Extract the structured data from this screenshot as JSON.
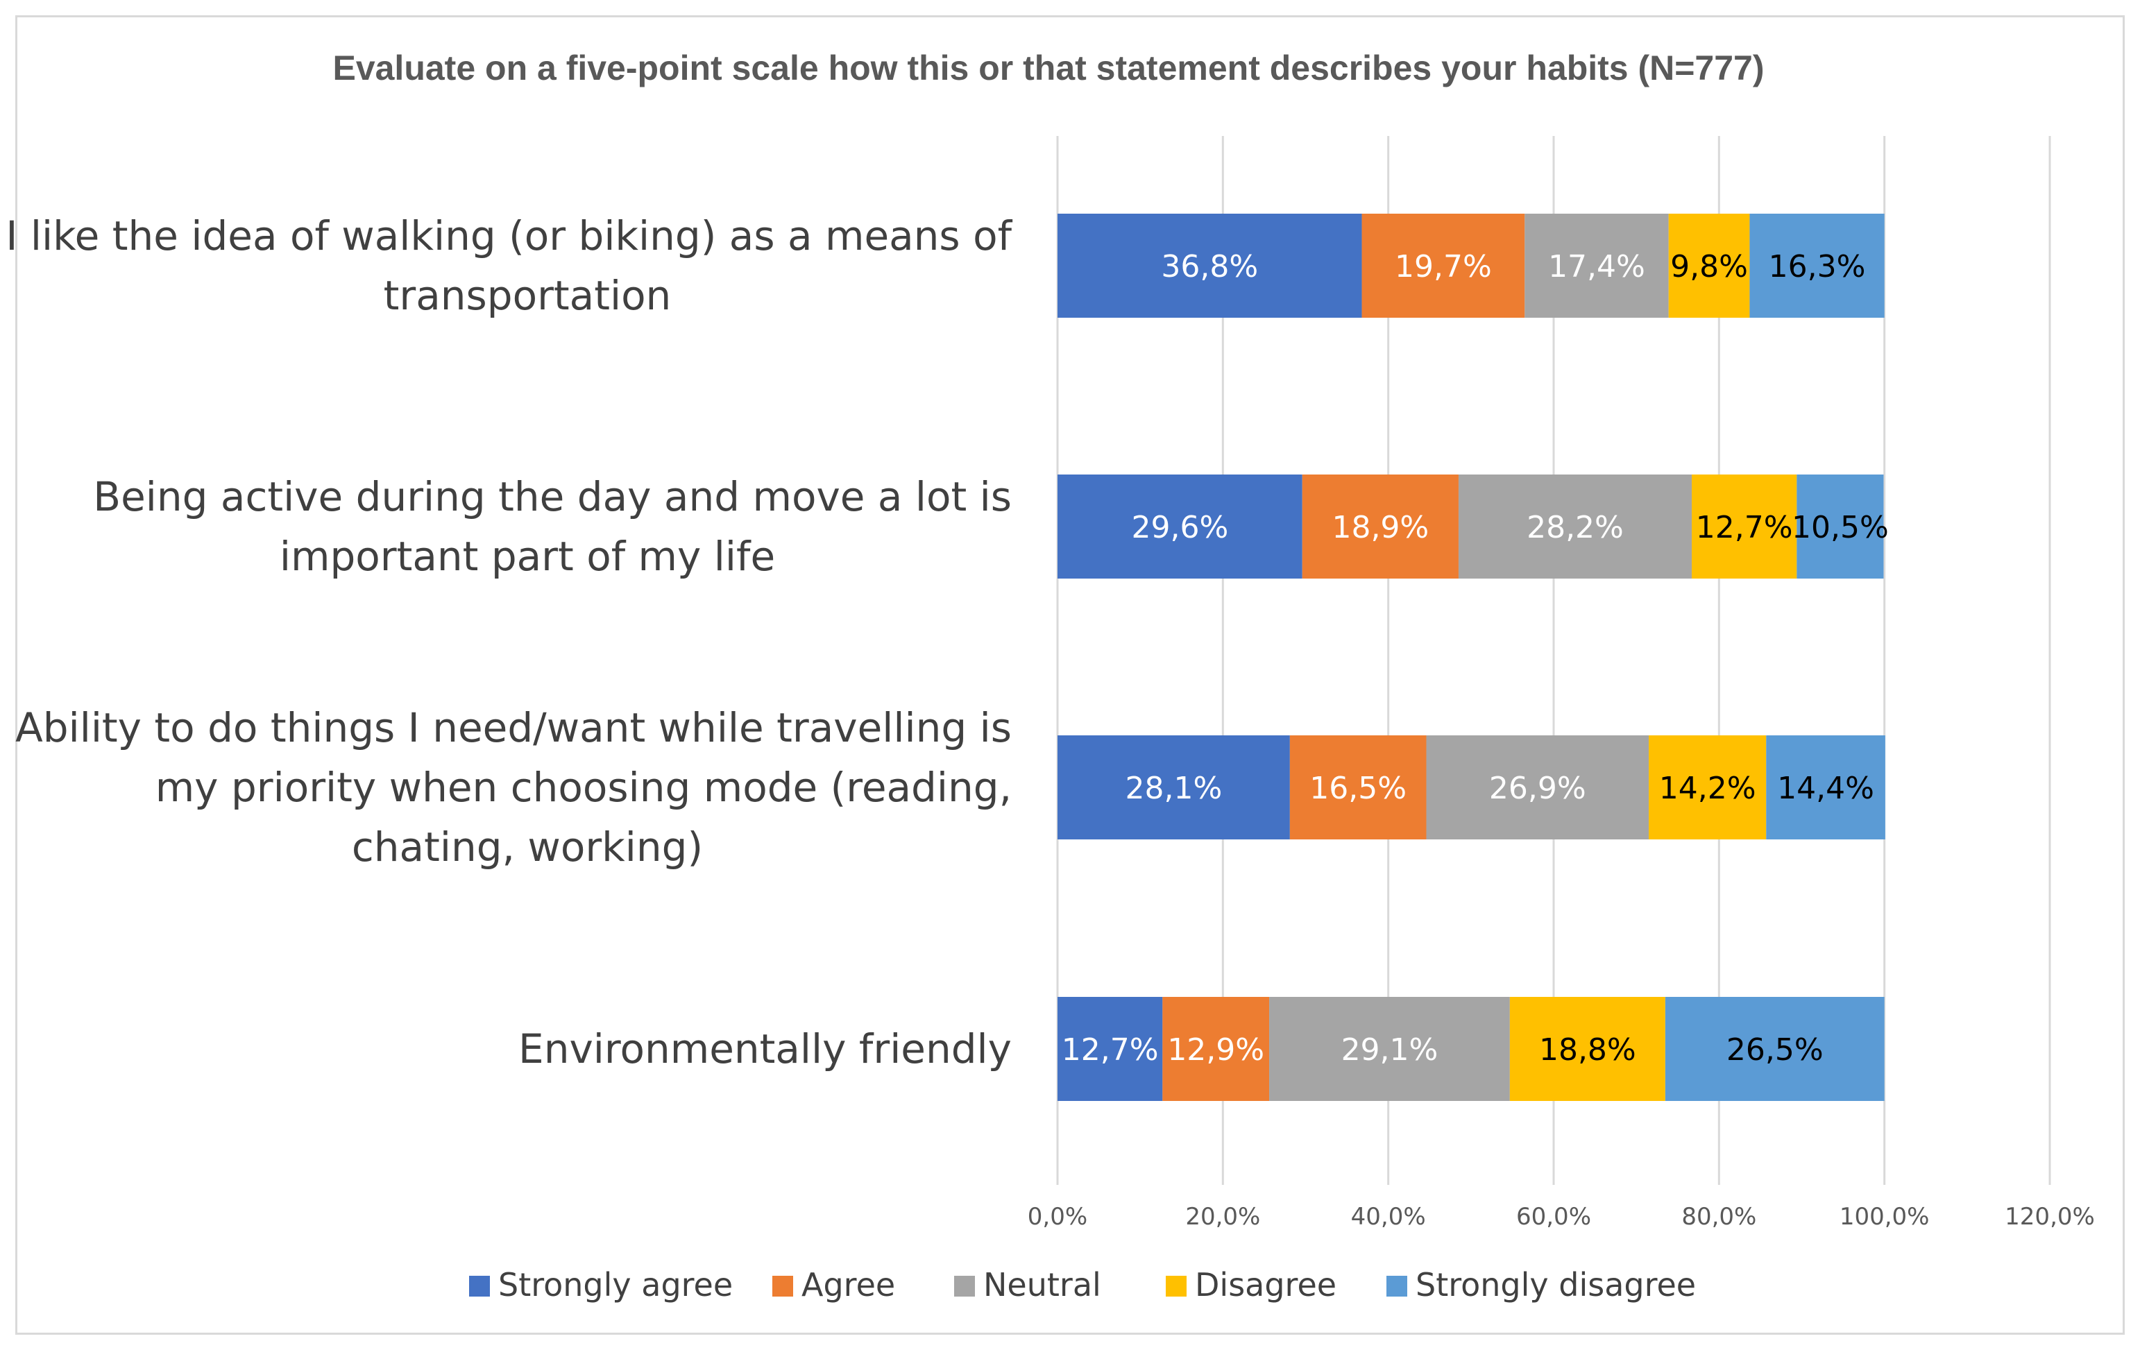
{
  "chart_data": {
    "type": "bar",
    "orientation": "horizontal",
    "stacked": true,
    "title": "Evaluate on a five-point scale how this or that statement describes your habits (N=777)",
    "categories": [
      [
        "I like the idea of walking (or biking) as a means of",
        "transportation"
      ],
      [
        "Being active during the day and move a lot is",
        "important part of my life"
      ],
      [
        "Ability to do things I need/want while travelling is",
        "my priority when choosing mode (reading,",
        "chating, working)"
      ],
      [
        "Environmentally friendly"
      ]
    ],
    "series": [
      {
        "name": "Strongly agree",
        "color": "#4472C4",
        "label_color": "#FFFFFF",
        "values": [
          36.8,
          29.6,
          28.1,
          12.7
        ],
        "labels": [
          "36,8%",
          "29,6%",
          "28,1%",
          "12,7%"
        ]
      },
      {
        "name": "Agree",
        "color": "#ED7D31",
        "label_color": "#FFFFFF",
        "values": [
          19.7,
          18.9,
          16.5,
          12.9
        ],
        "labels": [
          "19,7%",
          "18,9%",
          "16,5%",
          "12,9%"
        ]
      },
      {
        "name": "Neutral",
        "color": "#A5A5A5",
        "label_color": "#FFFFFF",
        "values": [
          17.4,
          28.2,
          26.9,
          29.1
        ],
        "labels": [
          "17,4%",
          "28,2%",
          "26,9%",
          "29,1%"
        ]
      },
      {
        "name": "Disagree",
        "color": "#FFC000",
        "label_color": "#000000",
        "values": [
          9.8,
          12.7,
          14.2,
          18.8
        ],
        "labels": [
          "9,8%",
          "12,7%",
          "14,2%",
          "18,8%"
        ]
      },
      {
        "name": "Strongly disagree",
        "color": "#5B9BD5",
        "label_color": "#000000",
        "values": [
          16.3,
          10.5,
          14.4,
          26.5
        ],
        "labels": [
          "16,3%",
          "10,5%",
          "14,4%",
          "26,5%"
        ]
      }
    ],
    "xlim": [
      0,
      120
    ],
    "xticks": [
      0,
      20,
      40,
      60,
      80,
      100,
      120
    ],
    "xtick_labels": [
      "0,0%",
      "20,0%",
      "40,0%",
      "60,0%",
      "80,0%",
      "100,0%",
      "120,0%"
    ],
    "grid": true,
    "legend_position": "bottom"
  }
}
